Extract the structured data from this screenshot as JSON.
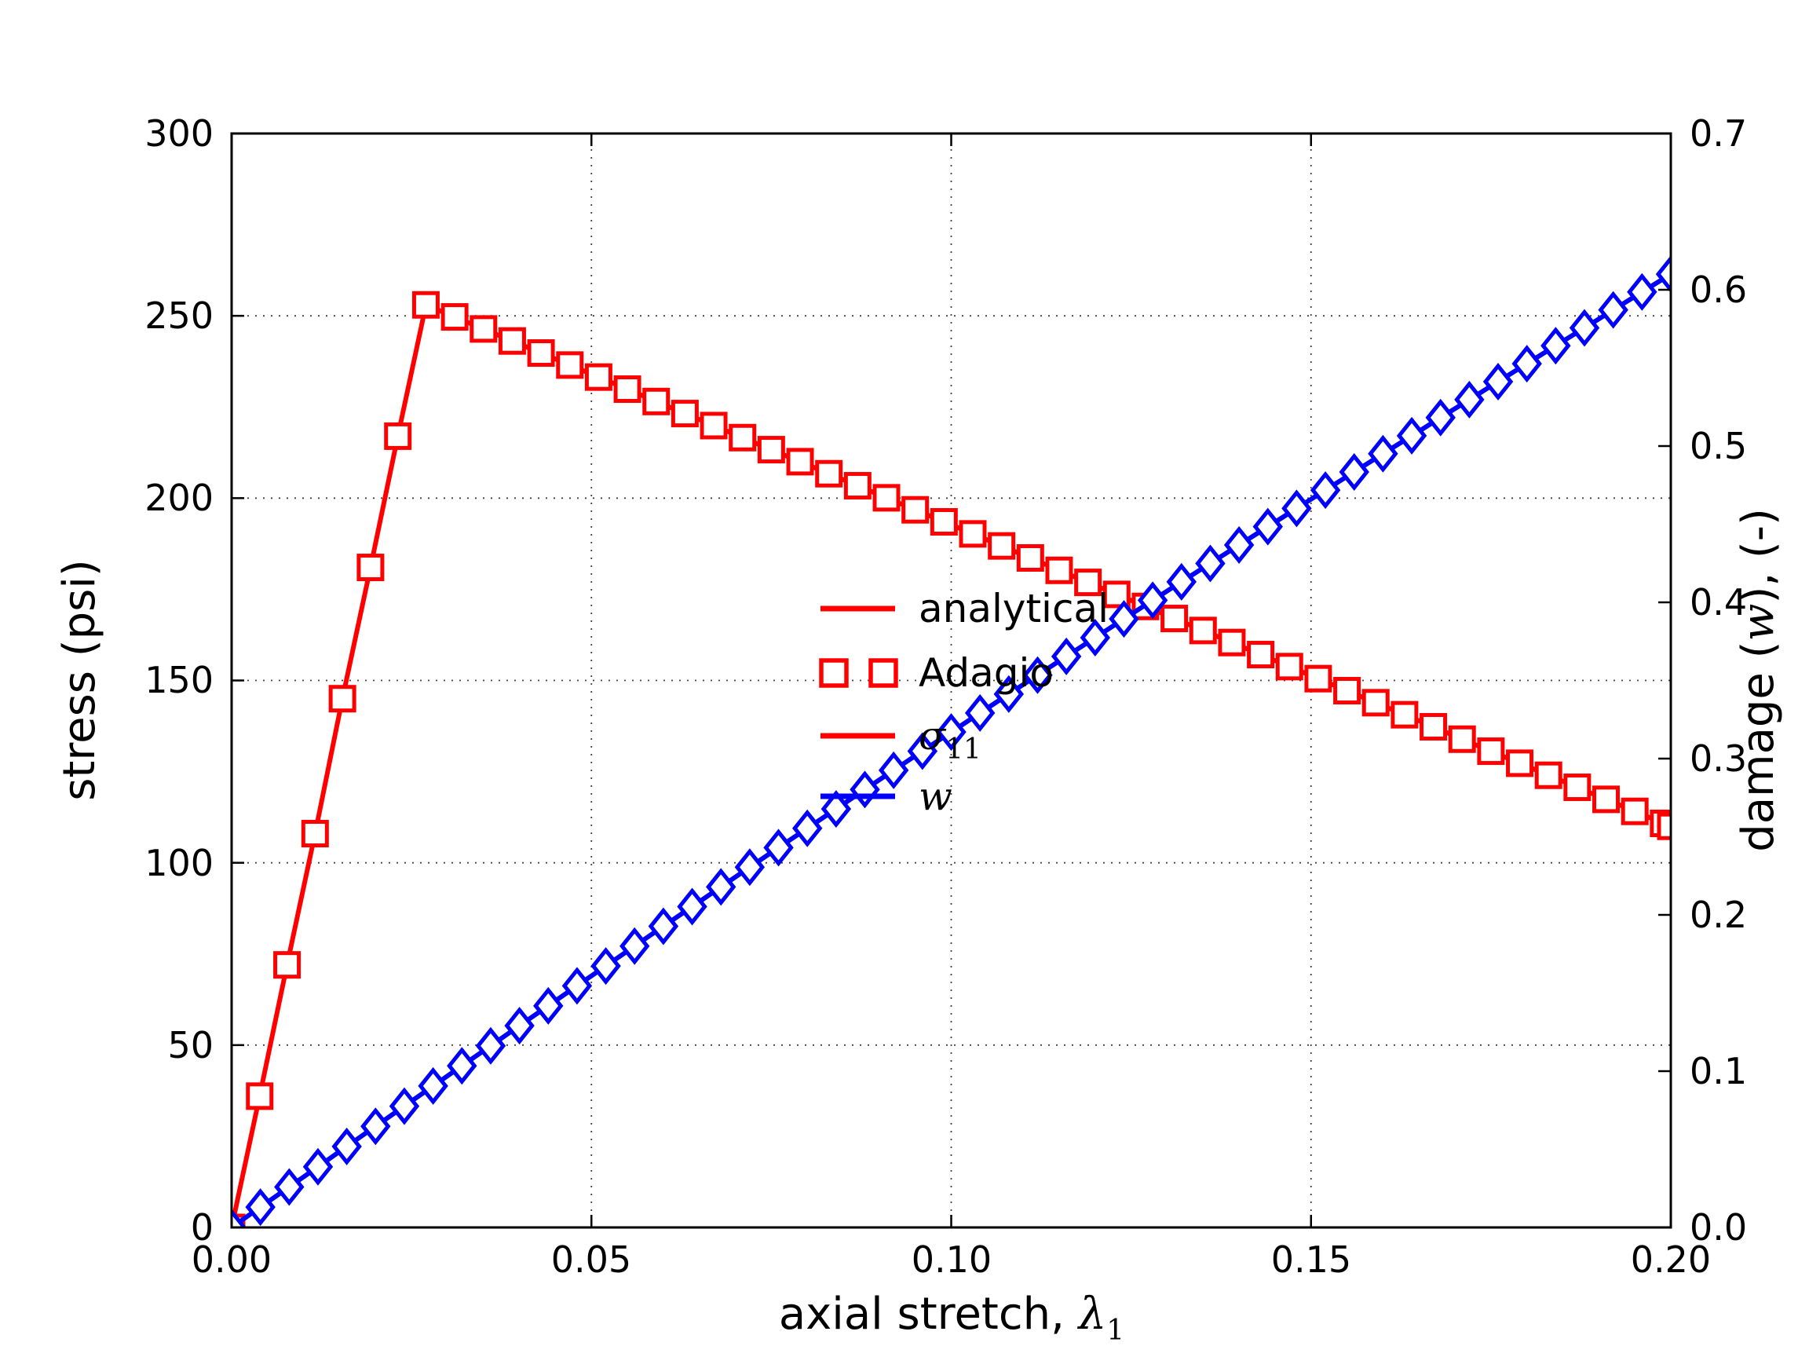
{
  "colors": {
    "red": "#ff0000",
    "blue": "#0000ff",
    "grid": "#444444",
    "axis": "#000000",
    "background": "#ffffff"
  },
  "axes": {
    "xlabel": {
      "prefix": "axial stretch, ",
      "symbol": "λ",
      "subscript": "1"
    },
    "ylabel_left": "stress (psi)",
    "ylabel_right": {
      "prefix": "damage (",
      "symbol": "w",
      "suffix": "), (-)"
    }
  },
  "chart_data": {
    "type": "line",
    "title": "",
    "xlabel": "axial stretch, λ1",
    "ylabel_left": "stress (psi)",
    "ylabel_right": "damage (w), (-)",
    "xlim": [
      0,
      0.2
    ],
    "ylim_left": [
      0,
      300
    ],
    "ylim_right": [
      0,
      0.7
    ],
    "grid": true,
    "grid_style": "dotted",
    "x_tick_labels": [
      "0.00",
      "0.05",
      "0.10",
      "0.15",
      "0.20"
    ],
    "y_tick_labels_left": [
      "0",
      "50",
      "100",
      "150",
      "200",
      "250",
      "300"
    ],
    "y_tick_labels_right": [
      "0.0",
      "0.1",
      "0.2",
      "0.3",
      "0.4",
      "0.5",
      "0.6",
      "0.7"
    ],
    "legend": {
      "position": "lower right",
      "frame": false,
      "entries": [
        {
          "label": "analytical",
          "color": "#ff0000",
          "style": "line"
        },
        {
          "label": "Adagio",
          "color": "#ff0000",
          "style": "two-squares"
        },
        {
          "label": "σ",
          "subscript": "11",
          "color": "#ff0000",
          "style": "line"
        },
        {
          "label": "w",
          "subscript": "",
          "color": "#0000ff",
          "style": "line"
        }
      ]
    },
    "series": [
      {
        "name": "stress_sigma11",
        "axis": "left",
        "color": "#ff0000",
        "marker": "square",
        "x": [
          0,
          0.0039,
          0.0077,
          0.0116,
          0.0154,
          0.0193,
          0.0231,
          0.027,
          0.031,
          0.035,
          0.039,
          0.043,
          0.047,
          0.051,
          0.055,
          0.059,
          0.063,
          0.067,
          0.071,
          0.075,
          0.079,
          0.083,
          0.087,
          0.091,
          0.095,
          0.099,
          0.103,
          0.107,
          0.111,
          0.115,
          0.119,
          0.123,
          0.127,
          0.131,
          0.135,
          0.139,
          0.143,
          0.147,
          0.151,
          0.155,
          0.159,
          0.163,
          0.167,
          0.171,
          0.175,
          0.179,
          0.183,
          0.187,
          0.191,
          0.195,
          0.199,
          0.2
        ],
        "y": [
          0,
          36,
          72,
          108,
          145,
          181,
          217,
          253,
          249.7,
          246.4,
          243.1,
          239.8,
          236.5,
          233.2,
          229.9,
          226.5,
          223.2,
          219.9,
          216.6,
          213.3,
          210,
          206.7,
          203.4,
          200.1,
          196.8,
          193.5,
          190.2,
          186.9,
          183.6,
          180.2,
          176.9,
          173.6,
          170.3,
          167,
          163.7,
          160.4,
          157.1,
          153.8,
          150.5,
          147.2,
          143.9,
          140.6,
          137.3,
          133.9,
          130.6,
          127.3,
          124,
          120.7,
          117.4,
          114.1,
          110.8,
          110
        ]
      },
      {
        "name": "damage_w",
        "axis": "right",
        "color": "#0000ff",
        "marker": "diamond",
        "x": [
          0,
          0.004,
          0.008,
          0.012,
          0.016,
          0.02,
          0.024,
          0.028,
          0.032,
          0.036,
          0.04,
          0.044,
          0.048,
          0.052,
          0.056,
          0.06,
          0.064,
          0.068,
          0.072,
          0.076,
          0.08,
          0.084,
          0.088,
          0.092,
          0.096,
          0.1,
          0.104,
          0.108,
          0.112,
          0.116,
          0.12,
          0.124,
          0.128,
          0.132,
          0.136,
          0.14,
          0.144,
          0.148,
          0.152,
          0.156,
          0.16,
          0.164,
          0.168,
          0.172,
          0.176,
          0.18,
          0.184,
          0.188,
          0.192,
          0.196,
          0.2
        ],
        "y": [
          0,
          0.013,
          0.0259,
          0.0388,
          0.0518,
          0.0647,
          0.0776,
          0.0905,
          0.1034,
          0.1162,
          0.1291,
          0.1418,
          0.1546,
          0.1673,
          0.18,
          0.1927,
          0.2053,
          0.2179,
          0.2305,
          0.243,
          0.2554,
          0.2678,
          0.2802,
          0.2925,
          0.3048,
          0.317,
          0.3292,
          0.3413,
          0.3534,
          0.3654,
          0.3774,
          0.3894,
          0.4013,
          0.4131,
          0.4249,
          0.4367,
          0.4484,
          0.4601,
          0.4718,
          0.4834,
          0.4951,
          0.5066,
          0.5182,
          0.5297,
          0.5412,
          0.5527,
          0.5642,
          0.5756,
          0.5871,
          0.5986,
          0.61
        ]
      }
    ]
  }
}
